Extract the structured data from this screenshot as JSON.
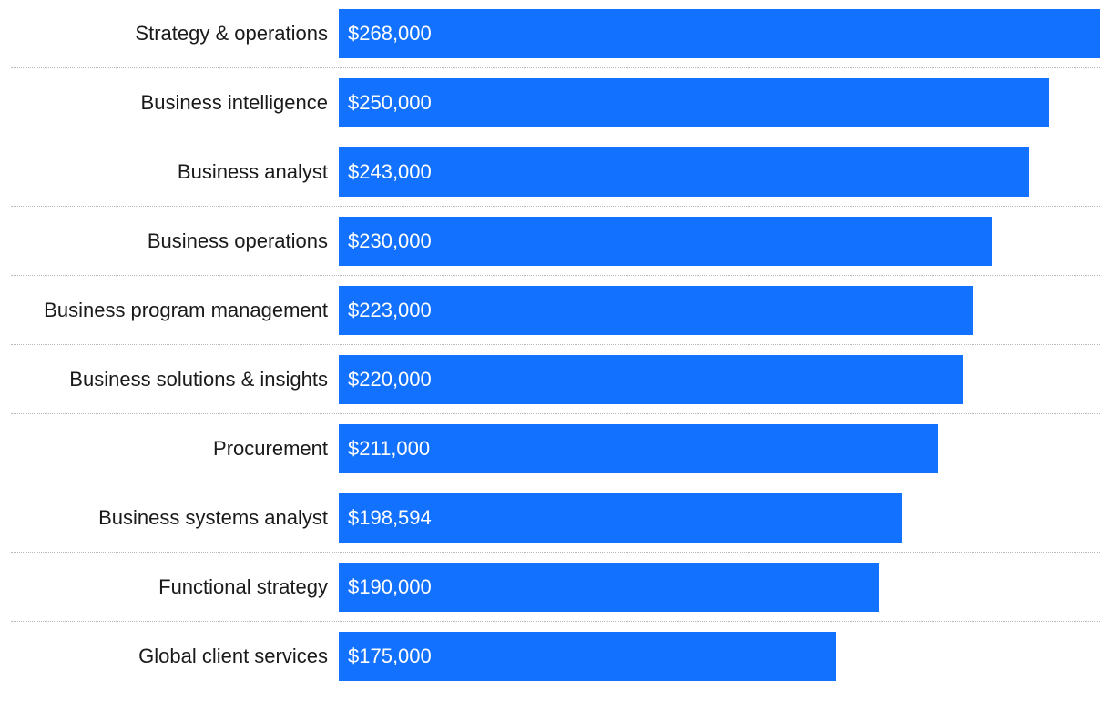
{
  "chart_data": {
    "type": "bar",
    "orientation": "horizontal",
    "categories": [
      "Strategy & operations",
      "Business intelligence",
      "Business analyst",
      "Business operations",
      "Business program management",
      "Business solutions & insights",
      "Procurement",
      "Business systems analyst",
      "Functional strategy",
      "Global client services"
    ],
    "values": [
      268000,
      250000,
      243000,
      230000,
      223000,
      220000,
      211000,
      198594,
      190000,
      175000
    ],
    "value_labels": [
      "$268,000",
      "$250,000",
      "$243,000",
      "$230,000",
      "$223,000",
      "$220,000",
      "$211,000",
      "$198,594",
      "$190,000",
      "$175,000"
    ],
    "xlim": [
      0,
      268000
    ],
    "grid": false,
    "row_dividers": true,
    "bar_color": "#1271ff",
    "label_color": "#1a1a1a",
    "value_label_color": "#ffffff",
    "divider_color": "#b8b8b8"
  }
}
